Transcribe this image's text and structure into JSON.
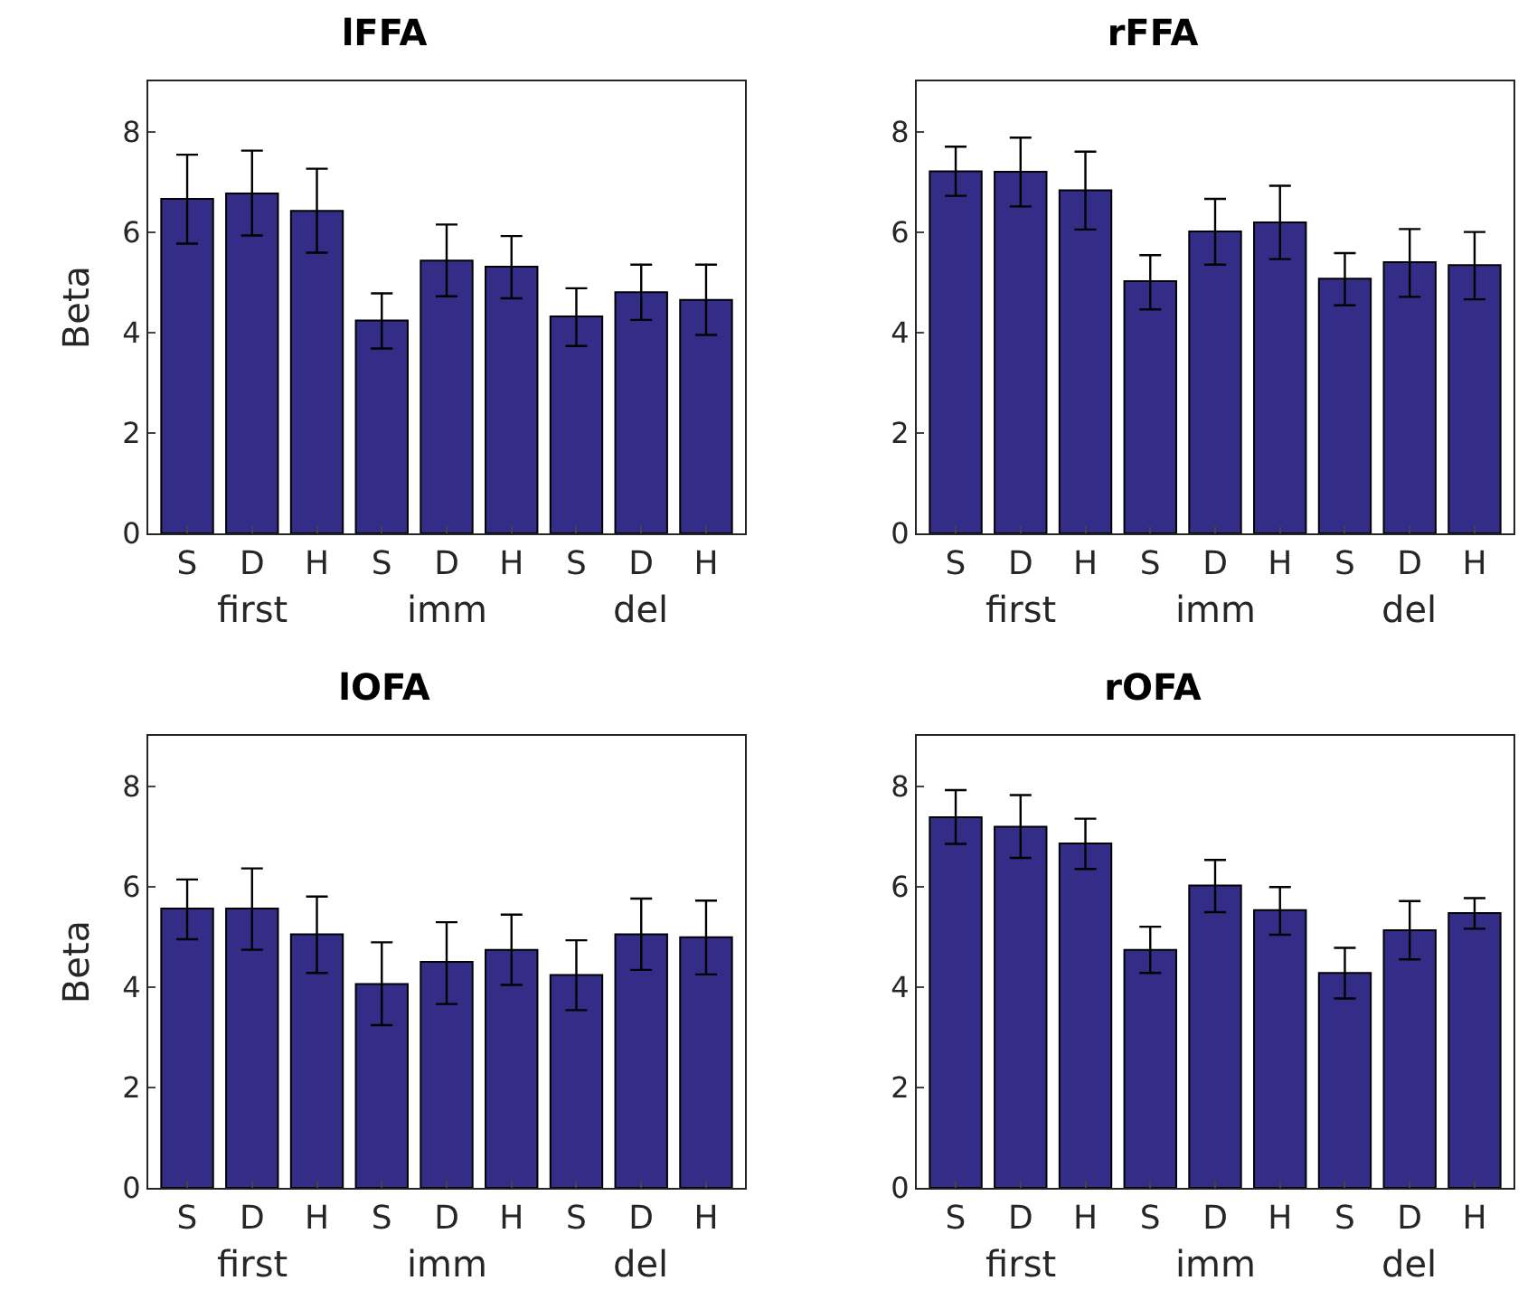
{
  "chart_data": [
    {
      "type": "bar",
      "title": "lFFA",
      "ylabel": "Beta",
      "categories": [
        "S",
        "D",
        "H",
        "S",
        "D",
        "H",
        "S",
        "D",
        "H"
      ],
      "color": "#342d87",
      "values": [
        6.66,
        6.77,
        6.42,
        4.24,
        5.43,
        5.31,
        4.32,
        4.8,
        4.65
      ],
      "errors": [
        [
          5.77,
          7.54
        ],
        [
          5.93,
          7.62
        ],
        [
          5.59,
          7.26
        ],
        [
          3.68,
          4.78
        ],
        [
          4.72,
          6.15
        ],
        [
          4.68,
          5.92
        ],
        [
          3.73,
          4.88
        ],
        [
          4.25,
          5.35
        ],
        [
          3.95,
          5.35
        ]
      ],
      "ylim": [
        0,
        9
      ],
      "yticks": [
        0,
        2,
        4,
        6,
        8
      ],
      "grid": false,
      "annotations": [
        "first",
        "imm",
        "del"
      ]
    },
    {
      "type": "bar",
      "title": "rFFA",
      "categories": [
        "S",
        "D",
        "H",
        "S",
        "D",
        "H",
        "S",
        "D",
        "H"
      ],
      "color": "#342d87",
      "values": [
        7.21,
        7.2,
        6.83,
        5.02,
        6.01,
        6.19,
        5.07,
        5.4,
        5.34
      ],
      "errors": [
        [
          6.72,
          7.7
        ],
        [
          6.51,
          7.88
        ],
        [
          6.05,
          7.6
        ],
        [
          4.46,
          5.54
        ],
        [
          5.35,
          6.66
        ],
        [
          5.46,
          6.92
        ],
        [
          4.54,
          5.58
        ],
        [
          4.71,
          6.06
        ],
        [
          4.66,
          6.0
        ]
      ],
      "ylim": [
        0,
        9
      ],
      "yticks": [
        0,
        2,
        4,
        6,
        8
      ],
      "grid": false,
      "annotations": [
        "first",
        "imm",
        "del"
      ]
    },
    {
      "type": "bar",
      "title": "lOFA",
      "ylabel": "Beta",
      "categories": [
        "S",
        "D",
        "H",
        "S",
        "D",
        "H",
        "S",
        "D",
        "H"
      ],
      "color": "#342d87",
      "values": [
        5.56,
        5.56,
        5.05,
        4.06,
        4.5,
        4.74,
        4.24,
        5.05,
        4.99
      ],
      "errors": [
        [
          4.95,
          6.14
        ],
        [
          4.74,
          6.36
        ],
        [
          4.28,
          5.8
        ],
        [
          3.24,
          4.89
        ],
        [
          3.66,
          5.29
        ],
        [
          4.04,
          5.44
        ],
        [
          3.54,
          4.93
        ],
        [
          4.34,
          5.76
        ],
        [
          4.25,
          5.72
        ]
      ],
      "ylim": [
        0,
        9
      ],
      "yticks": [
        0,
        2,
        4,
        6,
        8
      ],
      "grid": false,
      "annotations": [
        "first",
        "imm",
        "del"
      ]
    },
    {
      "type": "bar",
      "title": "rOFA",
      "categories": [
        "S",
        "D",
        "H",
        "S",
        "D",
        "H",
        "S",
        "D",
        "H"
      ],
      "color": "#342d87",
      "values": [
        7.38,
        7.19,
        6.86,
        4.74,
        6.02,
        5.53,
        4.28,
        5.13,
        5.47
      ],
      "errors": [
        [
          6.85,
          7.92
        ],
        [
          6.57,
          7.82
        ],
        [
          6.35,
          7.35
        ],
        [
          4.28,
          5.2
        ],
        [
          5.49,
          6.53
        ],
        [
          5.04,
          5.99
        ],
        [
          3.77,
          4.78
        ],
        [
          4.55,
          5.71
        ],
        [
          5.16,
          5.77
        ]
      ],
      "ylim": [
        0,
        9
      ],
      "yticks": [
        0,
        2,
        4,
        6,
        8
      ],
      "grid": false,
      "annotations": [
        "first",
        "imm",
        "del"
      ]
    }
  ]
}
